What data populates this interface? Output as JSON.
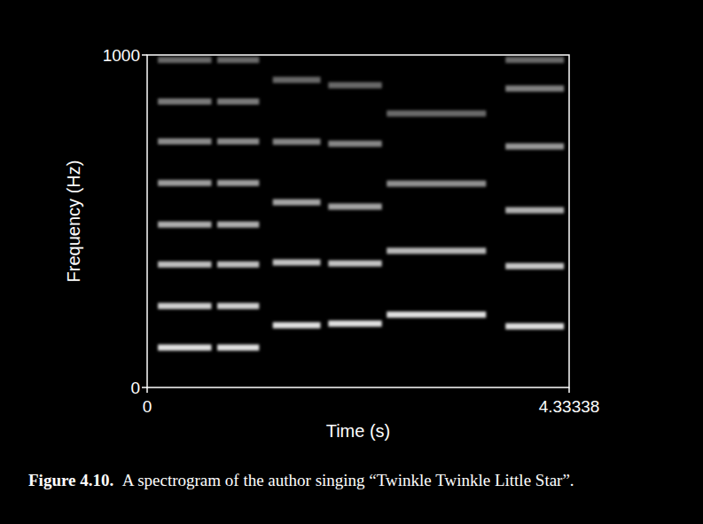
{
  "chart_data": {
    "type": "spectrogram",
    "x_label": "Time (s)",
    "y_label": "Frequency (Hz)",
    "xlim": [
      0,
      4.33338
    ],
    "xticks": [
      0,
      4.33338
    ],
    "ylim": [
      0,
      1000
    ],
    "yticks": [
      0,
      1000
    ],
    "caption_label": "Figure 4.10.",
    "caption": "A spectrogram of the author singing “Twinkle Twinkle Little Star”.",
    "notes": [
      {
        "start": 0.11,
        "end": 0.66,
        "harmonics": [
          120,
          245,
          370,
          490,
          615,
          740,
          860,
          985
        ]
      },
      {
        "start": 0.72,
        "end": 1.15,
        "harmonics": [
          120,
          245,
          370,
          490,
          615,
          740,
          860,
          985
        ]
      },
      {
        "start": 1.29,
        "end": 1.78,
        "harmonics": [
          187,
          376,
          557,
          739,
          925
        ]
      },
      {
        "start": 1.86,
        "end": 2.41,
        "harmonics": [
          192,
          373,
          544,
          733,
          909
        ]
      },
      {
        "start": 2.46,
        "end": 3.48,
        "harmonics": [
          219,
          411,
          613,
          824
        ]
      },
      {
        "start": 3.68,
        "end": 4.28,
        "harmonics": [
          184,
          365,
          533,
          725,
          899,
          985
        ]
      }
    ]
  }
}
